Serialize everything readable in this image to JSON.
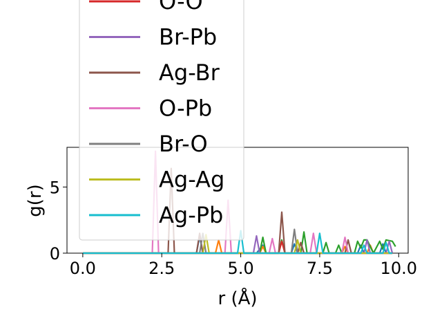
{
  "chart_data": {
    "type": "line",
    "xlabel": "r (Å)",
    "ylabel": "g(r)",
    "xlim": [
      -0.5,
      10.3
    ],
    "ylim": [
      0,
      8
    ],
    "xticks": [
      0.0,
      2.5,
      5.0,
      7.5,
      10.0
    ],
    "xtick_labels": [
      "0.0",
      "2.5",
      "5.0",
      "7.5",
      "10.0"
    ],
    "yticks": [
      0,
      5
    ],
    "ytick_labels": [
      "0",
      "5"
    ],
    "grid": false,
    "legend_position": "upper left, extending above plot",
    "series": [
      {
        "name": "",
        "color": "#1f77b4",
        "x": [
          0,
          3.6,
          3.7,
          3.8,
          3.9,
          5.0,
          5.5,
          5.7,
          5.8,
          6.6,
          6.7,
          6.8,
          8.7,
          8.8,
          8.9,
          9.4,
          9.5,
          9.6,
          9.8
        ],
        "y": [
          0,
          0,
          1.3,
          0,
          0,
          0,
          0,
          0.6,
          0,
          0,
          0.7,
          0,
          0,
          0.6,
          0,
          0,
          0.7,
          0,
          0
        ]
      },
      {
        "name": "",
        "color": "#ff7f0e",
        "x": [
          0,
          4.2,
          4.3,
          4.4,
          5.6,
          5.7,
          5.8,
          6.8,
          6.9,
          7.0,
          8.2,
          8.3,
          8.4,
          9.0,
          9.1,
          9.2,
          9.8
        ],
        "y": [
          0,
          0,
          1.0,
          0,
          0,
          0.5,
          0,
          0,
          0.8,
          0,
          0,
          0.5,
          0,
          0,
          0.6,
          0,
          0
        ]
      },
      {
        "name": "",
        "color": "#2ca02c",
        "x": [
          0,
          5.6,
          5.7,
          5.8,
          6.2,
          6.3,
          6.4,
          6.9,
          7.0,
          7.1,
          7.6,
          7.7,
          7.8,
          8.0,
          8.1,
          8.2,
          8.6,
          8.7,
          8.8,
          8.9,
          9.0,
          9.1,
          9.2,
          9.4,
          9.5,
          9.6,
          9.8,
          9.9
        ],
        "y": [
          0,
          0,
          1.2,
          0,
          0,
          1.0,
          0,
          0,
          1.6,
          0,
          0,
          0.8,
          0,
          0,
          0.6,
          0,
          0,
          0.9,
          0.4,
          1.0,
          1.0,
          0.5,
          0,
          0.9,
          0.3,
          1.0,
          0.9,
          0.5
        ]
      },
      {
        "name": "O-O",
        "color": "#d62728",
        "x": [
          0,
          6.2,
          6.3,
          6.4,
          9.8
        ],
        "y": [
          0,
          0,
          0.9,
          0,
          0
        ]
      },
      {
        "name": "Br-Pb",
        "color": "#9467bd",
        "x": [
          0,
          5.4,
          5.5,
          5.6,
          8.9,
          9.0,
          9.1,
          9.6,
          9.7,
          9.8
        ],
        "y": [
          0,
          0,
          1.3,
          0,
          0,
          1.0,
          0,
          0,
          0.9,
          0
        ]
      },
      {
        "name": "Ag-Br",
        "color": "#8c564b",
        "x": [
          0,
          2.7,
          2.8,
          2.9,
          3.6,
          3.7,
          3.8,
          6.2,
          6.3,
          6.4,
          6.8,
          6.9,
          7.0,
          8.3,
          8.4,
          8.5,
          9.8
        ],
        "y": [
          0,
          0,
          6.4,
          0,
          0,
          1.5,
          0,
          0,
          3.1,
          0,
          0,
          0.8,
          0,
          0,
          1.0,
          0,
          0
        ]
      },
      {
        "name": "O-Pb",
        "color": "#e377c2",
        "x": [
          0,
          2.2,
          2.3,
          2.4,
          4.5,
          4.6,
          4.7,
          5.9,
          6.0,
          6.1,
          7.2,
          7.3,
          7.4,
          8.2,
          8.3,
          8.4,
          9.8
        ],
        "y": [
          0,
          0,
          7.7,
          0,
          0,
          4.0,
          0,
          0,
          1.1,
          0,
          0,
          1.5,
          0,
          0,
          1.2,
          0,
          0
        ]
      },
      {
        "name": "Br-O",
        "color": "#7f7f7f",
        "x": [
          0,
          3.7,
          3.8,
          3.9,
          6.6,
          6.7,
          6.8,
          9.8
        ],
        "y": [
          0,
          0,
          1.5,
          0,
          0,
          1.8,
          0,
          0
        ]
      },
      {
        "name": "Ag-Ag",
        "color": "#bcbd22",
        "x": [
          0,
          3.8,
          3.9,
          4.0,
          6.7,
          6.8,
          6.9,
          9.8
        ],
        "y": [
          0,
          0,
          1.4,
          0,
          0,
          1.0,
          0,
          0
        ]
      },
      {
        "name": "Ag-Pb",
        "color": "#17becf",
        "x": [
          0,
          4.9,
          5.0,
          5.1,
          7.4,
          7.5,
          7.6,
          8.8,
          8.9,
          9.0,
          9.5,
          9.6,
          9.7,
          9.8
        ],
        "y": [
          0,
          0,
          1.7,
          0,
          0,
          1.5,
          0,
          0,
          0.6,
          0,
          0,
          0.8,
          0,
          0
        ]
      }
    ],
    "legend_entries": [
      {
        "label": "O-O",
        "color": "#d62728"
      },
      {
        "label": "Br-Pb",
        "color": "#9467bd"
      },
      {
        "label": "Ag-Br",
        "color": "#8c564b"
      },
      {
        "label": "O-Pb",
        "color": "#e377c2"
      },
      {
        "label": "Br-O",
        "color": "#7f7f7f"
      },
      {
        "label": "Ag-Ag",
        "color": "#bcbd22"
      },
      {
        "label": "Ag-Pb",
        "color": "#17becf"
      }
    ]
  }
}
